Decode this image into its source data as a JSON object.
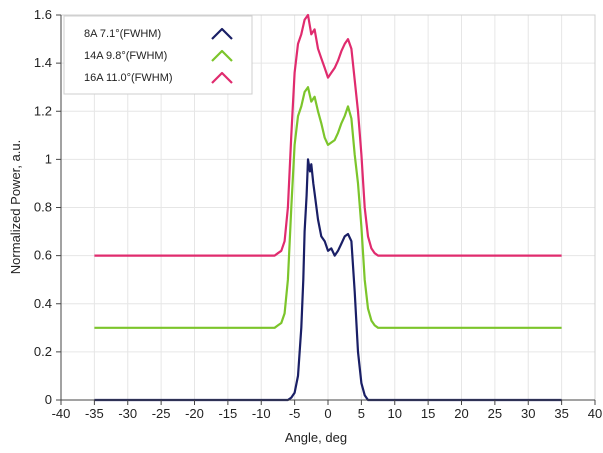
{
  "chart_data": {
    "type": "line",
    "title": "",
    "xlabel": "Angle, deg",
    "ylabel": "Normalized Power, a.u.",
    "xlim": [
      -40,
      40
    ],
    "ylim": [
      0,
      1.6
    ],
    "xticks": [
      -40,
      -35,
      -30,
      -25,
      -20,
      -15,
      -10,
      -5,
      0,
      5,
      10,
      15,
      20,
      25,
      30,
      35,
      40
    ],
    "xtick_labels": [
      "-40",
      "-35",
      "-30",
      "-25",
      "-20",
      "-15",
      "-10",
      "-5",
      "0",
      "5",
      "10",
      "15",
      "20",
      "25",
      "30",
      "35",
      "40"
    ],
    "yticks": [
      0,
      0.2,
      0.4,
      0.6,
      0.8,
      1.0,
      1.2,
      1.4,
      1.6
    ],
    "ytick_labels": [
      "0",
      "0.2",
      "0.4",
      "0.6",
      "0.8",
      "1",
      "1.2",
      "1.4",
      "1.6"
    ],
    "grid": true,
    "legend_position": "top-left",
    "series": [
      {
        "name": "8A 7.1°(FWHM)",
        "color": "#1a1f66",
        "x": [
          -35,
          -6,
          -5.5,
          -5,
          -4.5,
          -4,
          -3.7,
          -3.5,
          -3.2,
          -3,
          -2.7,
          -2.5,
          -2.2,
          -2,
          -1.5,
          -1,
          -0.5,
          0,
          0.5,
          1,
          1.5,
          2,
          2.5,
          3,
          3.5,
          4,
          4.5,
          5,
          5.5,
          6,
          35
        ],
        "y": [
          0,
          0,
          0.01,
          0.03,
          0.1,
          0.3,
          0.5,
          0.7,
          0.85,
          1.0,
          0.95,
          0.98,
          0.9,
          0.86,
          0.75,
          0.68,
          0.66,
          0.62,
          0.63,
          0.6,
          0.62,
          0.65,
          0.68,
          0.69,
          0.66,
          0.45,
          0.2,
          0.07,
          0.02,
          0,
          0
        ]
      },
      {
        "name": "14A 9.8°(FWHM)",
        "color": "#7cc52b",
        "x": [
          -35,
          -8,
          -7.5,
          -7,
          -6.5,
          -6,
          -5.5,
          -5,
          -4.5,
          -4,
          -3.5,
          -3,
          -2.5,
          -2,
          -1.5,
          -1,
          -0.5,
          0,
          0.5,
          1,
          1.5,
          2,
          2.5,
          3,
          3.5,
          4,
          4.5,
          5,
          5.5,
          6,
          6.5,
          7,
          7.5,
          8,
          35
        ],
        "y": [
          0.3,
          0.3,
          0.31,
          0.32,
          0.36,
          0.5,
          0.8,
          1.06,
          1.18,
          1.22,
          1.28,
          1.3,
          1.24,
          1.26,
          1.2,
          1.15,
          1.09,
          1.06,
          1.07,
          1.08,
          1.11,
          1.15,
          1.18,
          1.22,
          1.17,
          1.02,
          0.9,
          0.72,
          0.5,
          0.38,
          0.33,
          0.31,
          0.3,
          0.3,
          0.3
        ]
      },
      {
        "name": "16A 11.0°(FWHM)",
        "color": "#e02b6e",
        "x": [
          -35,
          -8,
          -7.5,
          -7,
          -6.5,
          -6,
          -5.5,
          -5,
          -4.5,
          -4,
          -3.5,
          -3,
          -2.5,
          -2,
          -1.5,
          -1,
          -0.5,
          0,
          0.5,
          1,
          1.5,
          2,
          2.5,
          3,
          3.5,
          4,
          4.5,
          5,
          5.5,
          6,
          6.5,
          7,
          7.5,
          8,
          35
        ],
        "y": [
          0.6,
          0.6,
          0.61,
          0.62,
          0.66,
          0.8,
          1.1,
          1.36,
          1.48,
          1.52,
          1.58,
          1.6,
          1.52,
          1.54,
          1.46,
          1.42,
          1.38,
          1.34,
          1.36,
          1.38,
          1.41,
          1.45,
          1.48,
          1.5,
          1.46,
          1.33,
          1.2,
          1.02,
          0.8,
          0.68,
          0.63,
          0.61,
          0.6,
          0.6,
          0.6
        ]
      }
    ]
  }
}
